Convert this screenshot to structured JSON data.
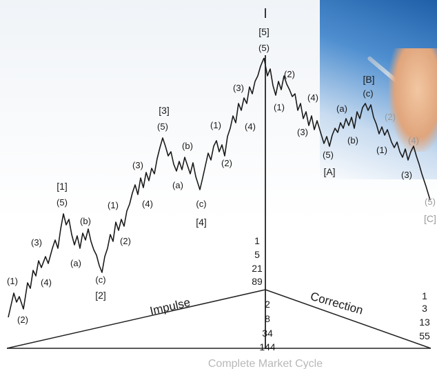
{
  "wave_labels": {
    "impulse_minor": [
      "(1)",
      "(2)",
      "(3)",
      "(4)",
      "(5)"
    ],
    "abc": [
      "(a)",
      "(b)",
      "(c)"
    ],
    "major": [
      "[1]",
      "[2]",
      "[3]",
      "[4]",
      "[5]"
    ],
    "correction_major": [
      "[A]",
      "[B]",
      "[C]"
    ]
  },
  "axis_labels": {
    "impulse": "Impulse",
    "correction": "Correction"
  },
  "fib_upper": [
    "1",
    "5",
    "21",
    "89"
  ],
  "fib_lower": [
    "2",
    "8",
    "34",
    "144"
  ],
  "fib_right": [
    "1",
    "3",
    "13",
    "55"
  ],
  "caption": "Complete Market Cycle",
  "colors": {
    "line": "#1a1a1a",
    "label": "#1a1a1a",
    "faded": "#9a9a9a"
  }
}
